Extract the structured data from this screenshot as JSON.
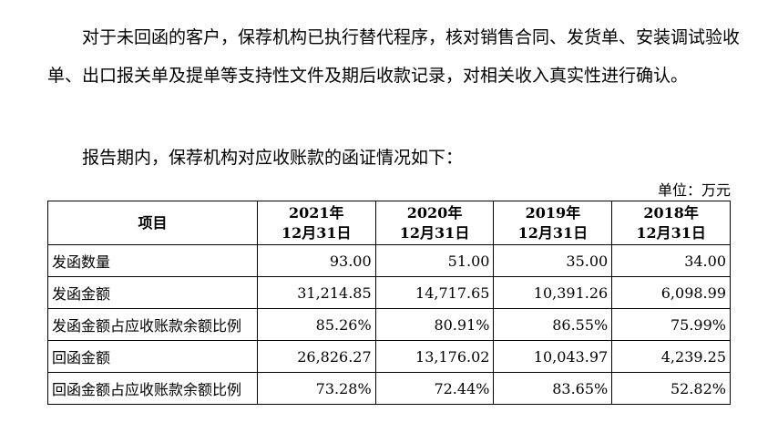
{
  "paragraphs": [
    "对于未回函的客户，保荐机构已执行替代程序，核对销售合同、发货单、安装调试验收单、出口报关单及提单等支持性文件及期后收款记录，对相关收入真实性进行确认。",
    "报告期内，保荐机构对应收账款的函证情况如下："
  ],
  "unit": "单位：万元",
  "table": {
    "header": {
      "item": "项目",
      "years": [
        {
          "year": "2021年",
          "date": "12月31日"
        },
        {
          "year": "2020年",
          "date": "12月31日"
        },
        {
          "year": "2019年",
          "date": "12月31日"
        },
        {
          "year": "2018年",
          "date": "12月31日"
        }
      ]
    },
    "rows": [
      {
        "label": "发函数量",
        "values": [
          "93.00",
          "51.00",
          "35.00",
          "34.00"
        ]
      },
      {
        "label": "发函金额",
        "values": [
          "31,214.85",
          "14,717.65",
          "10,391.26",
          "6,098.99"
        ]
      },
      {
        "label": "发函金额占应收账款余额比例",
        "values": [
          "85.26%",
          "80.91%",
          "86.55%",
          "75.99%"
        ]
      },
      {
        "label": "回函金额",
        "values": [
          "26,826.27",
          "13,176.02",
          "10,043.97",
          "4,239.25"
        ]
      },
      {
        "label": "回函金额占应收账款余额比例",
        "values": [
          "73.28%",
          "72.44%",
          "83.65%",
          "52.82%"
        ]
      }
    ]
  }
}
